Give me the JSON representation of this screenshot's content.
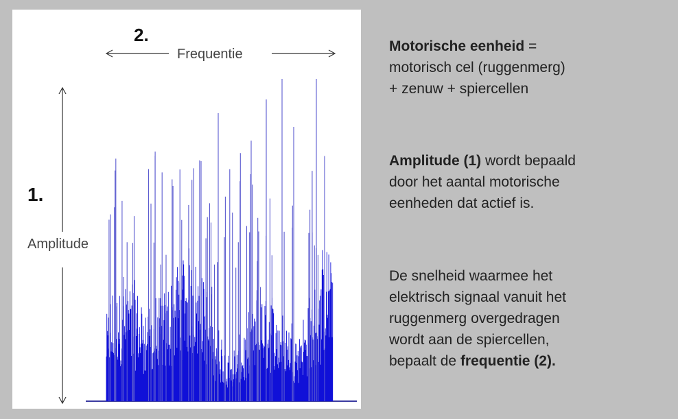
{
  "figure": {
    "label_2": "2.",
    "frequency_label": "Frequentie",
    "label_1": "1.",
    "amplitude_label": "Amplitude"
  },
  "paragraphs": [
    {
      "lines": [
        [
          {
            "text": "Motorische eenheid",
            "bold": true
          },
          {
            "text": " =",
            "bold": false
          }
        ],
        [
          {
            "text": "motorisch cel (ruggenmerg)",
            "bold": false
          }
        ],
        [
          {
            "text": "+ zenuw + spiercellen",
            "bold": false
          }
        ]
      ]
    },
    {
      "lines": [
        [
          {
            "text": "Amplitude (1)",
            "bold": true
          },
          {
            "text": " wordt bepaald",
            "bold": false
          }
        ],
        [
          {
            "text": "door het aantal motorische",
            "bold": false
          }
        ],
        [
          {
            "text": "eenheden dat actief is.",
            "bold": false
          }
        ]
      ]
    },
    {
      "lines": [
        [
          {
            "text": "De snelheid waarmee het",
            "bold": false
          }
        ],
        [
          {
            "text": "elektrisch signaal vanuit het",
            "bold": false
          }
        ],
        [
          {
            "text": "ruggenmerg overgedragen",
            "bold": false
          }
        ],
        [
          {
            "text": "wordt aan de spiercellen,",
            "bold": false
          }
        ],
        [
          {
            "text": "bepaalt de ",
            "bold": false
          },
          {
            "text": "frequentie (2).",
            "bold": true
          }
        ]
      ]
    }
  ]
}
